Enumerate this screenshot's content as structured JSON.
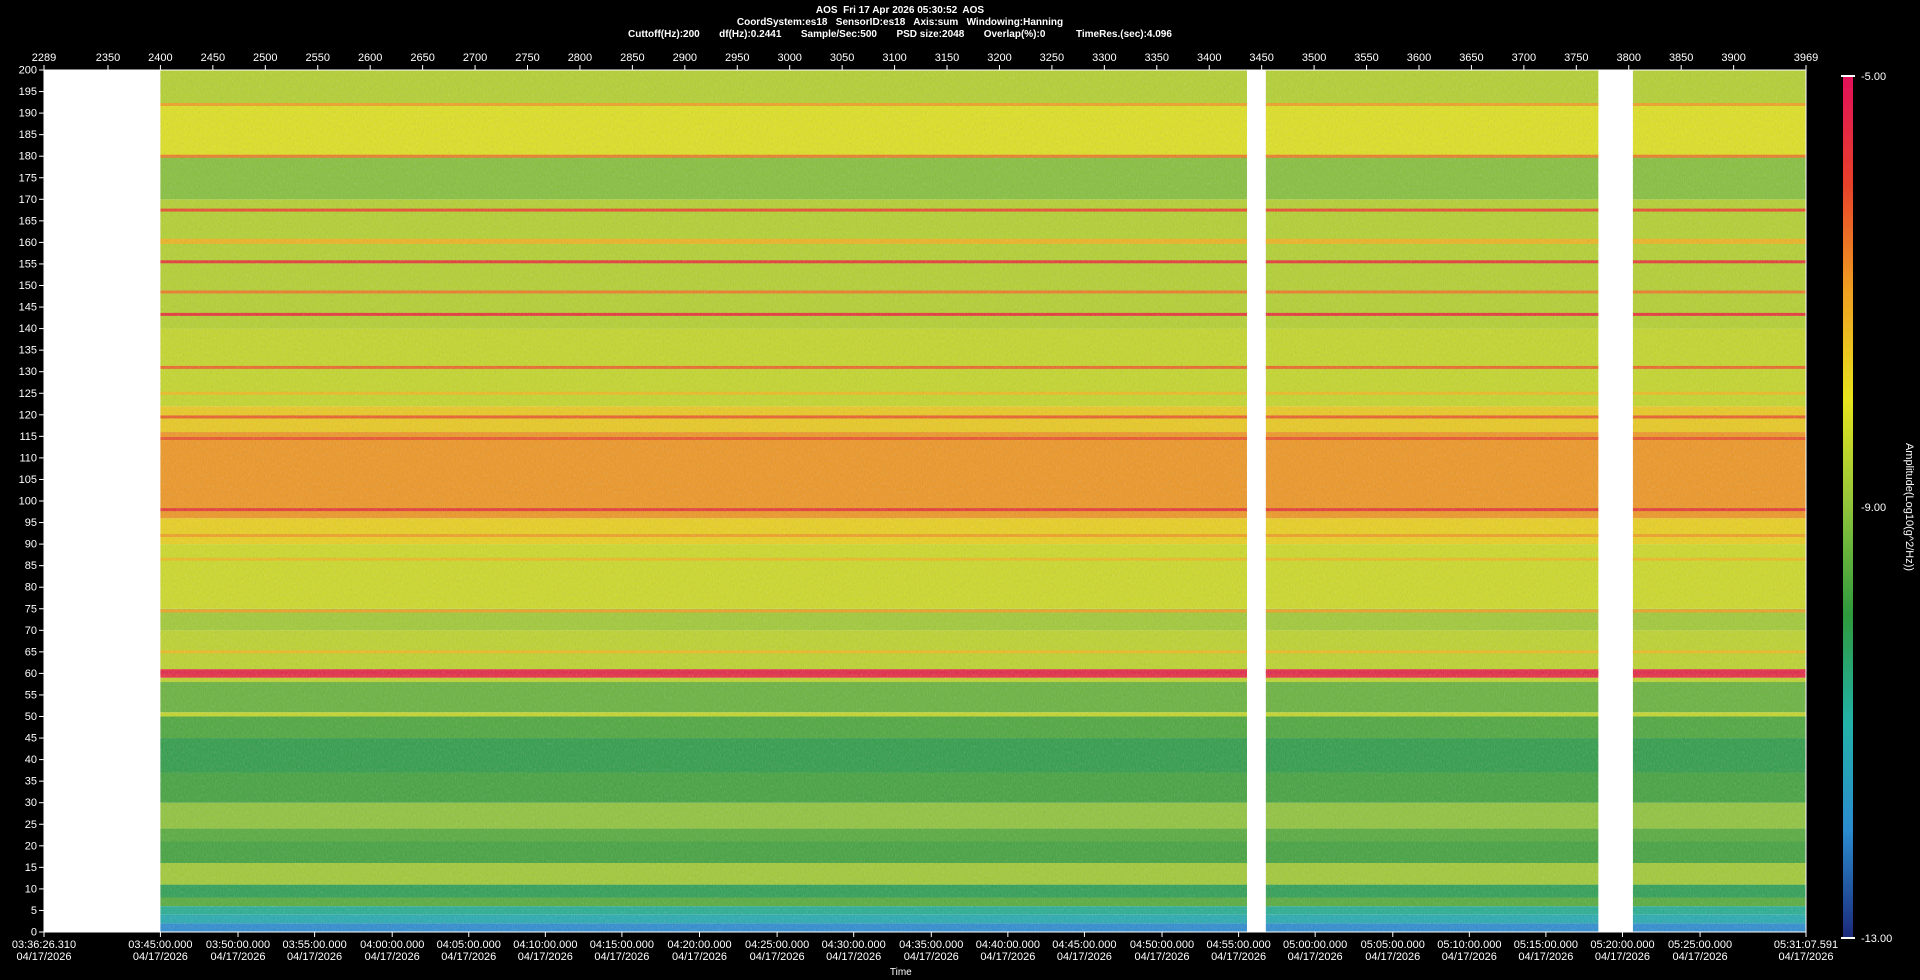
{
  "header": {
    "title": "AOS  Fri 17 Apr 2026 05:30:52  AOS",
    "line2": "CoordSystem:es18   SensorID:es18   Axis:sum   Windowing:Hanning",
    "line3": "Cuttoff(Hz):200       df(Hz):0.2441       Sample/Sec:500       PSD size:2048       Overlap(%):0           TimeRes.(sec):4.096"
  },
  "chart_data": {
    "type": "heatmap",
    "title": "AOS  Fri 17 Apr 2026 05:30:52  AOS",
    "xlabel": "Time",
    "ylabel": "",
    "colorbar_label": "Amplitude(Log10(g^2/Hz))",
    "colorbar_ticks": [
      "-5.00",
      "-9.00",
      "-13.00"
    ],
    "color_range": [
      -13,
      -5
    ],
    "colorscale": [
      "#1b2a7a",
      "#2a8bd0",
      "#22b2a8",
      "#2e9a3c",
      "#8fc43a",
      "#e8e41c",
      "#f0a020",
      "#e8402a",
      "#e0105a"
    ],
    "ylim": [
      0,
      200
    ],
    "y_ticks": [
      200,
      195,
      190,
      185,
      180,
      175,
      170,
      165,
      160,
      155,
      150,
      145,
      140,
      135,
      130,
      125,
      120,
      115,
      110,
      105,
      100,
      95,
      90,
      85,
      80,
      75,
      70,
      65,
      60,
      55,
      50,
      45,
      40,
      35,
      30,
      25,
      20,
      15,
      10,
      5,
      0
    ],
    "top_axis_labels": [
      "2289",
      "2350",
      "2400",
      "2450",
      "2500",
      "2550",
      "2600",
      "2650",
      "2700",
      "2750",
      "2800",
      "2850",
      "2900",
      "2950",
      "3000",
      "3050",
      "3100",
      "3150",
      "3200",
      "3250",
      "3300",
      "3350",
      "3400",
      "3450",
      "3500",
      "3550",
      "3600",
      "3650",
      "3700",
      "3750",
      "3800",
      "3850",
      "3900",
      "3969"
    ],
    "top_axis_values": [
      2289,
      2350,
      2400,
      2450,
      2500,
      2550,
      2600,
      2650,
      2700,
      2750,
      2800,
      2850,
      2900,
      2950,
      3000,
      3050,
      3100,
      3150,
      3200,
      3250,
      3300,
      3350,
      3400,
      3450,
      3500,
      3550,
      3600,
      3650,
      3700,
      3750,
      3800,
      3850,
      3900,
      3969
    ],
    "time_ticks": [
      {
        "time": "03:36:26.310",
        "date": "04/17/2026"
      },
      {
        "time": "03:45:00.000",
        "date": "04/17/2026"
      },
      {
        "time": "03:50:00.000",
        "date": "04/17/2026"
      },
      {
        "time": "03:55:00.000",
        "date": "04/17/2026"
      },
      {
        "time": "04:00:00.000",
        "date": "04/17/2026"
      },
      {
        "time": "04:05:00.000",
        "date": "04/17/2026"
      },
      {
        "time": "04:10:00.000",
        "date": "04/17/2026"
      },
      {
        "time": "04:15:00.000",
        "date": "04/17/2026"
      },
      {
        "time": "04:20:00.000",
        "date": "04/17/2026"
      },
      {
        "time": "04:25:00.000",
        "date": "04/17/2026"
      },
      {
        "time": "04:30:00.000",
        "date": "04/17/2026"
      },
      {
        "time": "04:35:00.000",
        "date": "04/17/2026"
      },
      {
        "time": "04:40:00.000",
        "date": "04/17/2026"
      },
      {
        "time": "04:45:00.000",
        "date": "04/17/2026"
      },
      {
        "time": "04:50:00.000",
        "date": "04/17/2026"
      },
      {
        "time": "04:55:00.000",
        "date": "04/17/2026"
      },
      {
        "time": "05:00:00.000",
        "date": "04/17/2026"
      },
      {
        "time": "05:05:00.000",
        "date": "04/17/2026"
      },
      {
        "time": "05:10:00.000",
        "date": "04/17/2026"
      },
      {
        "time": "05:15:00.000",
        "date": "04/17/2026"
      },
      {
        "time": "05:20:00.000",
        "date": "04/17/2026"
      },
      {
        "time": "05:25:00.000",
        "date": "04/17/2026"
      },
      {
        "time": "05:31:07.591",
        "date": "04/17/2026"
      }
    ],
    "time_tick_values": [
      2289,
      2400,
      2474,
      2547,
      2621,
      2694,
      2767,
      2840,
      2914,
      2988,
      3061,
      3135,
      3208,
      3281,
      3355,
      3428,
      3501,
      3575,
      3648,
      3721,
      3794,
      3868,
      3969
    ],
    "data_segments": [
      [
        2400,
        3436
      ],
      [
        3454,
        3771
      ],
      [
        3804,
        3969
      ]
    ],
    "bands": [
      {
        "from": 0,
        "to": 2,
        "amp": -12.0
      },
      {
        "from": 2,
        "to": 4,
        "amp": -11.2
      },
      {
        "from": 4,
        "to": 6,
        "amp": -10.8
      },
      {
        "from": 6,
        "to": 8,
        "amp": -9.6
      },
      {
        "from": 8,
        "to": 11,
        "amp": -10.2
      },
      {
        "from": 11,
        "to": 16,
        "amp": -8.8
      },
      {
        "from": 16,
        "to": 21,
        "amp": -9.8
      },
      {
        "from": 21,
        "to": 24,
        "amp": -9.6
      },
      {
        "from": 24,
        "to": 30,
        "amp": -9.0
      },
      {
        "from": 30,
        "to": 37,
        "amp": -9.8
      },
      {
        "from": 37,
        "to": 45,
        "amp": -10.1
      },
      {
        "from": 45,
        "to": 50,
        "amp": -9.7
      },
      {
        "from": 50,
        "to": 51,
        "amp": -8.4
      },
      {
        "from": 51,
        "to": 58,
        "amp": -9.4
      },
      {
        "from": 58,
        "to": 59,
        "amp": -8.5
      },
      {
        "from": 59,
        "to": 61,
        "amp": -5.6
      },
      {
        "from": 61,
        "to": 70,
        "amp": -8.5
      },
      {
        "from": 70,
        "to": 75,
        "amp": -8.8
      },
      {
        "from": 75,
        "to": 90,
        "amp": -8.3
      },
      {
        "from": 90,
        "to": 96,
        "amp": -7.7
      },
      {
        "from": 96,
        "to": 116,
        "amp": -6.9
      },
      {
        "from": 116,
        "to": 122,
        "amp": -7.6
      },
      {
        "from": 122,
        "to": 140,
        "amp": -8.4
      },
      {
        "from": 140,
        "to": 170,
        "amp": -8.6
      },
      {
        "from": 170,
        "to": 180,
        "amp": -9.1
      },
      {
        "from": 180,
        "to": 192,
        "amp": -8.1
      },
      {
        "from": 192,
        "to": 200,
        "amp": -8.6
      }
    ],
    "lines": [
      {
        "freq": 60.2,
        "amp": -5.4
      },
      {
        "freq": 98,
        "amp": -5.8
      },
      {
        "freq": 114.5,
        "amp": -6.2
      },
      {
        "freq": 119.5,
        "amp": -6.3
      },
      {
        "freq": 131,
        "amp": -6.4
      },
      {
        "freq": 143.3,
        "amp": -5.7
      },
      {
        "freq": 148.5,
        "amp": -6.6
      },
      {
        "freq": 155.5,
        "amp": -5.8
      },
      {
        "freq": 167.5,
        "amp": -6.1
      },
      {
        "freq": 180,
        "amp": -6.6
      },
      {
        "freq": 192,
        "amp": -7.0
      },
      {
        "freq": 74.5,
        "amp": -7.0
      },
      {
        "freq": 92,
        "amp": -7.0
      },
      {
        "freq": 86.5,
        "amp": -7.4
      },
      {
        "freq": 65,
        "amp": -7.4
      },
      {
        "freq": 125,
        "amp": -7.4
      },
      {
        "freq": 160,
        "amp": -7.3
      },
      {
        "freq": 160.5,
        "amp": -7.3
      }
    ]
  }
}
